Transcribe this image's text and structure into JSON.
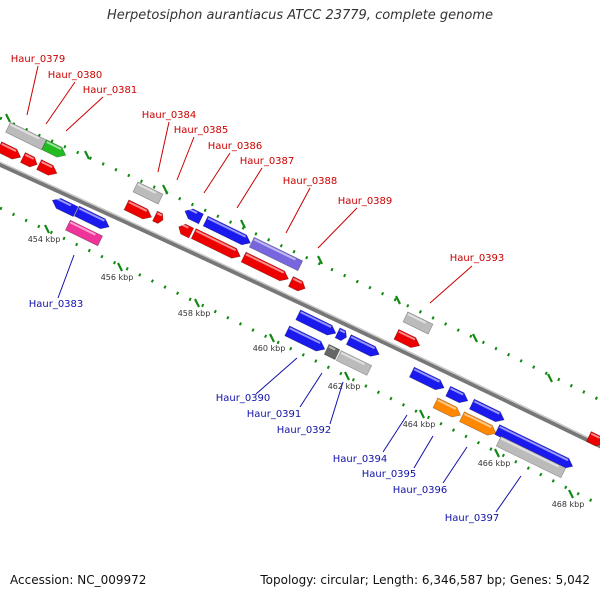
{
  "title": "Herpetosiphon aurantiacus ATCC 23779, complete genome",
  "footer": {
    "accession": "Accession: NC_009972",
    "topology": "Topology: circular; Length: 6,346,587 bp; Genes: 5,042"
  },
  "colors": {
    "red": "#ee0000",
    "blue": "#1a1aee",
    "green": "#22bb22",
    "magenta": "#ee3399",
    "grey": "#bbbbbb",
    "darkgrey": "#666666",
    "purple": "#7766dd",
    "orange": "#ff8800",
    "tick": "#118811",
    "label_red": "#cc0000",
    "label_blue": "#1111aa"
  },
  "ticks": [
    {
      "label": "454 kbp"
    },
    {
      "label": "456 kbp"
    },
    {
      "label": "458 kbp"
    },
    {
      "label": "460 kbp"
    },
    {
      "label": "462 kbp"
    },
    {
      "label": "464 kbp"
    },
    {
      "label": "466 kbp"
    },
    {
      "label": "468 kbp"
    }
  ],
  "gene_labels_top": [
    {
      "name": "Haur_0379"
    },
    {
      "name": "Haur_0380"
    },
    {
      "name": "Haur_0381"
    },
    {
      "name": "Haur_0384"
    },
    {
      "name": "Haur_0385"
    },
    {
      "name": "Haur_0386"
    },
    {
      "name": "Haur_0387"
    },
    {
      "name": "Haur_0388"
    },
    {
      "name": "Haur_0389"
    },
    {
      "name": "Haur_0393"
    }
  ],
  "gene_labels_bottom": [
    {
      "name": "Haur_0383"
    },
    {
      "name": "Haur_0390"
    },
    {
      "name": "Haur_0391"
    },
    {
      "name": "Haur_0392"
    },
    {
      "name": "Haur_0394"
    },
    {
      "name": "Haur_0395"
    },
    {
      "name": "Haur_0396"
    },
    {
      "name": "Haur_0397"
    }
  ]
}
